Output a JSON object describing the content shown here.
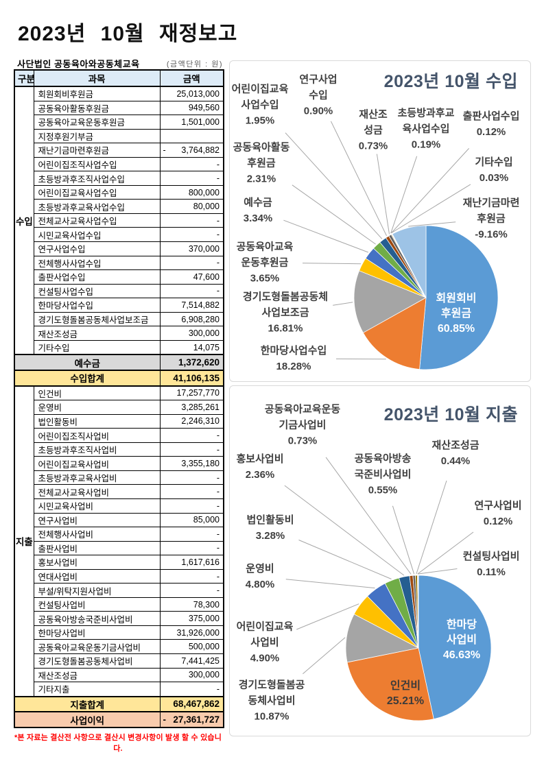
{
  "page": {
    "title": "2023년 10월 재정보고",
    "org_name": "사단법인 공동육아와공동체교육",
    "unit_note": "(금액단위 : 원)",
    "footnote": "*본 자료는 결산전 사항으로 결산시 변경사항이 발생 할 수 있습니다."
  },
  "table": {
    "headers": [
      "구분",
      "과목",
      "금액"
    ],
    "sections": [
      {
        "group": "수입",
        "rows": [
          {
            "item": "회원회비후원금",
            "amount": "25,013,000"
          },
          {
            "item": "공동육아활동후원금",
            "amount": "949,560"
          },
          {
            "item": "공동육아교육운동후원금",
            "amount": "1,501,000"
          },
          {
            "item": "지정후원기부금",
            "amount": ""
          },
          {
            "item": "재난기금마련후원금",
            "amount": "3,764,882",
            "neg": true
          },
          {
            "item": "어린이집조직사업수입",
            "amount": "-"
          },
          {
            "item": "초등방과후조직사업수입",
            "amount": "-"
          },
          {
            "item": "어린이집교육사업수입",
            "amount": "800,000"
          },
          {
            "item": "초등방과후교육사업수입",
            "amount": "80,000"
          },
          {
            "item": "전체교사교육사업수입",
            "amount": "-"
          },
          {
            "item": "시민교육사업수입",
            "amount": "-"
          },
          {
            "item": "연구사업수입",
            "amount": "370,000"
          },
          {
            "item": "전체행사사업수입",
            "amount": "-"
          },
          {
            "item": "출판사업수입",
            "amount": "47,600"
          },
          {
            "item": "컨설팅사업수입",
            "amount": "-"
          },
          {
            "item": "한마당사업수입",
            "amount": "7,514,882"
          },
          {
            "item": "경기도형돌봄공동체사업보조금",
            "amount": "6,908,280"
          },
          {
            "item": "재산조성금",
            "amount": "300,000"
          },
          {
            "item": "기타수입",
            "amount": "14,075"
          }
        ]
      },
      {
        "group": "지출",
        "rows": [
          {
            "item": "인건비",
            "amount": "17,257,770"
          },
          {
            "item": "운영비",
            "amount": "3,285,261"
          },
          {
            "item": "법인활동비",
            "amount": "2,246,310"
          },
          {
            "item": "어린이집조직사업비",
            "amount": "-"
          },
          {
            "item": "초등방과후조직사업비",
            "amount": "-"
          },
          {
            "item": "어린이집교육사업비",
            "amount": "3,355,180"
          },
          {
            "item": "초등방과후교육사업비",
            "amount": "-"
          },
          {
            "item": "전체교사교육사업비",
            "amount": "-"
          },
          {
            "item": "시민교육사업비",
            "amount": "-"
          },
          {
            "item": "연구사업비",
            "amount": "85,000"
          },
          {
            "item": "전체행사사업비",
            "amount": "-"
          },
          {
            "item": "출판사업비",
            "amount": "-"
          },
          {
            "item": "홍보사업비",
            "amount": "1,617,616"
          },
          {
            "item": "연대사업비",
            "amount": "-"
          },
          {
            "item": "부설/위탁지원사업비",
            "amount": "-"
          },
          {
            "item": "컨설팅사업비",
            "amount": "78,300"
          },
          {
            "item": "공동육아방송국준비사업비",
            "amount": "375,000"
          },
          {
            "item": "한마당사업비",
            "amount": "31,926,000"
          },
          {
            "item": "공동육아교육운동기금사업비",
            "amount": "500,000"
          },
          {
            "item": "경기도형돌봄공동체사업비",
            "amount": "7,441,425"
          },
          {
            "item": "재산조성금",
            "amount": "300,000"
          },
          {
            "item": "기타지출",
            "amount": "-"
          }
        ]
      }
    ],
    "summary_rows": [
      {
        "label": "예수금",
        "amount": "1,372,620",
        "style": "gray",
        "after_section": 0
      },
      {
        "label": "수입합계",
        "amount": "41,106,135",
        "style": "yellow",
        "after_section": 0
      },
      {
        "label": "지출합계",
        "amount": "68,467,862",
        "style": "yellow",
        "after_section": 1
      },
      {
        "label": "사업이익",
        "amount": "27,361,727",
        "neg": true,
        "style": "salmon",
        "after_section": 1
      }
    ]
  },
  "chart_data": [
    {
      "type": "pie",
      "name": "income",
      "title": "2023년 10월 수입",
      "title_color": "#44546A",
      "legend_position": "none",
      "slices": [
        {
          "label": "회원회비후원금",
          "value": 25013000,
          "pct": "60.85%",
          "color": "#5B9BD5",
          "label_lines": [
            "회원회비",
            "후원금",
            "60.85%"
          ]
        },
        {
          "label": "한마당사업수입",
          "value": 7514882,
          "pct": "18.28%",
          "color": "#ED7D31",
          "label_lines": [
            "한마당사업수입",
            "18.28%"
          ]
        },
        {
          "label": "경기도형돌봄공동체사업보조금",
          "value": 6908280,
          "pct": "16.81%",
          "color": "#A5A5A5",
          "label_lines": [
            "경기도형돌봄공동체",
            "사업보조금",
            "16.81%"
          ]
        },
        {
          "label": "공동육아교육운동후원금",
          "value": 1501000,
          "pct": "3.65%",
          "color": "#FFC000",
          "label_lines": [
            "공동육아교육",
            "운동후원금",
            "3.65%"
          ]
        },
        {
          "label": "예수금",
          "value": 1372620,
          "pct": "3.34%",
          "color": "#4472C4",
          "label_lines": [
            "예수금",
            "3.34%"
          ]
        },
        {
          "label": "공동육아활동후원금",
          "value": 949560,
          "pct": "2.31%",
          "color": "#70AD47",
          "label_lines": [
            "공동육아활동",
            "후원금",
            "2.31%"
          ]
        },
        {
          "label": "어린이집교육사업수입",
          "value": 800000,
          "pct": "1.95%",
          "color": "#255E91",
          "label_lines": [
            "어린이집교육",
            "사업수입",
            "1.95%"
          ]
        },
        {
          "label": "연구사업수입",
          "value": 370000,
          "pct": "0.90%",
          "color": "#9E480E",
          "label_lines": [
            "연구사업",
            "수입",
            "0.90%"
          ]
        },
        {
          "label": "재산조성금",
          "value": 300000,
          "pct": "0.73%",
          "color": "#636363",
          "label_lines": [
            "재산조",
            "성금",
            "0.73%"
          ]
        },
        {
          "label": "초등방과후교육사업수입",
          "value": 80000,
          "pct": "0.19%",
          "color": "#997300",
          "label_lines": [
            "초등방과후교",
            "육사업수입",
            "0.19%"
          ]
        },
        {
          "label": "출판사업수입",
          "value": 47600,
          "pct": "0.12%",
          "color": "#264478",
          "label_lines": [
            "출판사업수입",
            "0.12%"
          ]
        },
        {
          "label": "기타수입",
          "value": 14075,
          "pct": "0.03%",
          "color": "#43682B",
          "label_lines": [
            "기타수입",
            "0.03%"
          ]
        },
        {
          "label": "재난기금마련후원금",
          "value": -3764882,
          "pct": "-9.16%",
          "color": "#9DC3E6",
          "label_lines": [
            "재난기금마련",
            "후원금",
            "-9.16%"
          ]
        }
      ]
    },
    {
      "type": "pie",
      "name": "expense",
      "title": "2023년 10월 지출",
      "title_color": "#44546A",
      "legend_position": "none",
      "slices": [
        {
          "label": "한마당사업비",
          "value": 31926000,
          "pct": "46.63%",
          "color": "#5B9BD5",
          "label_lines": [
            "한마당",
            "사업비",
            "46.63%"
          ]
        },
        {
          "label": "인건비",
          "value": 17257770,
          "pct": "25.21%",
          "color": "#ED7D31",
          "label_lines": [
            "인건비",
            "25.21%"
          ]
        },
        {
          "label": "경기도형돌봄공동체사업비",
          "value": 7441425,
          "pct": "10.87%",
          "color": "#A5A5A5",
          "label_lines": [
            "경기도형돌봄공",
            "동체사업비",
            "10.87%"
          ]
        },
        {
          "label": "어린이집교육사업비",
          "value": 3355180,
          "pct": "4.90%",
          "color": "#FFC000",
          "label_lines": [
            "어린이집교육",
            "사업비",
            "4.90%"
          ]
        },
        {
          "label": "운영비",
          "value": 3285261,
          "pct": "4.80%",
          "color": "#4472C4",
          "label_lines": [
            "운영비",
            "4.80%"
          ]
        },
        {
          "label": "법인활동비",
          "value": 2246310,
          "pct": "3.28%",
          "color": "#70AD47",
          "label_lines": [
            "법인활동비",
            "3.28%"
          ]
        },
        {
          "label": "홍보사업비",
          "value": 1617616,
          "pct": "2.36%",
          "color": "#255E91",
          "label_lines": [
            "홍보사업비",
            "2.36%"
          ]
        },
        {
          "label": "공동육아교육운동기금사업비",
          "value": 500000,
          "pct": "0.73%",
          "color": "#9E480E",
          "label_lines": [
            "공동육아교육운동",
            "기금사업비",
            "0.73%"
          ]
        },
        {
          "label": "공동육아방송국준비사업비",
          "value": 375000,
          "pct": "0.55%",
          "color": "#636363",
          "label_lines": [
            "공동육아방송",
            "국준비사업비",
            "0.55%"
          ]
        },
        {
          "label": "재산조성금",
          "value": 300000,
          "pct": "0.44%",
          "color": "#997300",
          "label_lines": [
            "재산조성금",
            "0.44%"
          ]
        },
        {
          "label": "연구사업비",
          "value": 85000,
          "pct": "0.12%",
          "color": "#264478",
          "label_lines": [
            "연구사업비",
            "0.12%"
          ]
        },
        {
          "label": "컨설팅사업비",
          "value": 78300,
          "pct": "0.11%",
          "color": "#43682B",
          "label_lines": [
            "컨설팅사업비",
            "0.11%"
          ]
        }
      ]
    }
  ]
}
